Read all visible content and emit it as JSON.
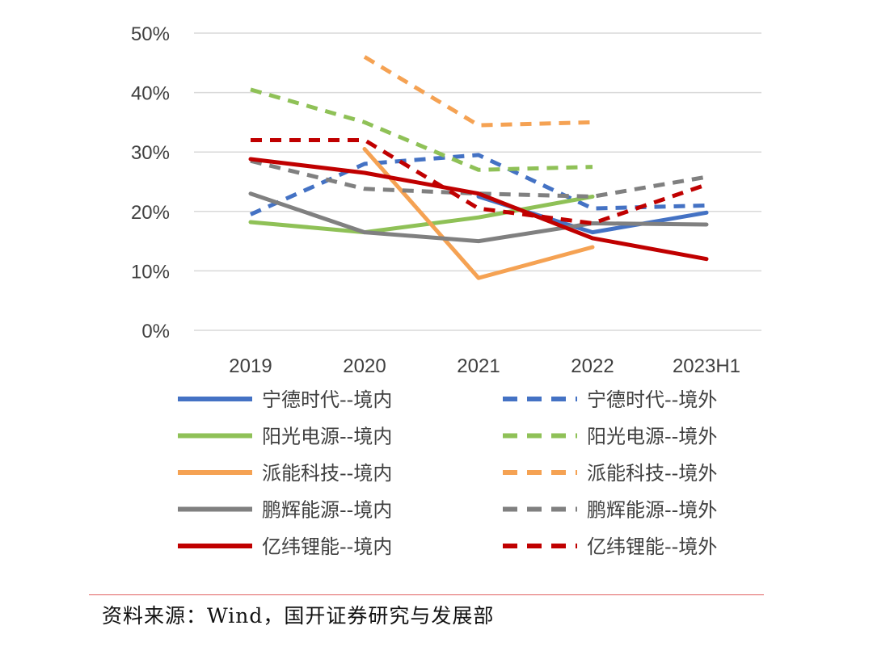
{
  "chart_data": {
    "type": "line",
    "categories": [
      "2019",
      "2020",
      "2021",
      "2022",
      "2023H1"
    ],
    "y_ticks": [
      "0%",
      "10%",
      "20%",
      "30%",
      "40%",
      "50%"
    ],
    "ylim": [
      0,
      50
    ],
    "grid": true,
    "legend_position": "bottom",
    "series": [
      {
        "name": "宁德时代--境内",
        "color": "#4472c4",
        "dash": false,
        "values": [
          null,
          null,
          22.5,
          16.5,
          19.8
        ]
      },
      {
        "name": "宁德时代--境外",
        "color": "#4472c4",
        "dash": true,
        "values": [
          19.5,
          28,
          29.5,
          20.5,
          21
        ]
      },
      {
        "name": "阳光电源--境内",
        "color": "#8fc157",
        "dash": false,
        "values": [
          18.2,
          16.5,
          19,
          22.5,
          null
        ]
      },
      {
        "name": "阳光电源--境外",
        "color": "#8fc157",
        "dash": true,
        "values": [
          40.5,
          35,
          27,
          27.5,
          null
        ]
      },
      {
        "name": "派能科技--境内",
        "color": "#f5a253",
        "dash": false,
        "values": [
          null,
          30.5,
          8.8,
          14,
          null
        ]
      },
      {
        "name": "派能科技--境外",
        "color": "#f5a253",
        "dash": true,
        "values": [
          null,
          46,
          34.5,
          35,
          null
        ]
      },
      {
        "name": "鹏辉能源--境内",
        "color": "#808080",
        "dash": false,
        "values": [
          23,
          16.5,
          15,
          18,
          17.8
        ]
      },
      {
        "name": "鹏辉能源--境外",
        "color": "#808080",
        "dash": true,
        "values": [
          28.5,
          23.8,
          23,
          22.5,
          25.8
        ]
      },
      {
        "name": "亿纬锂能--境内",
        "color": "#c00000",
        "dash": false,
        "values": [
          28.8,
          26.5,
          23,
          15.5,
          12
        ]
      },
      {
        "name": "亿纬锂能--境外",
        "color": "#c00000",
        "dash": true,
        "values": [
          32,
          32,
          20.5,
          18,
          24.5
        ]
      }
    ]
  },
  "footer": {
    "source": "资料来源：Wind，国开证券研究与发展部"
  }
}
